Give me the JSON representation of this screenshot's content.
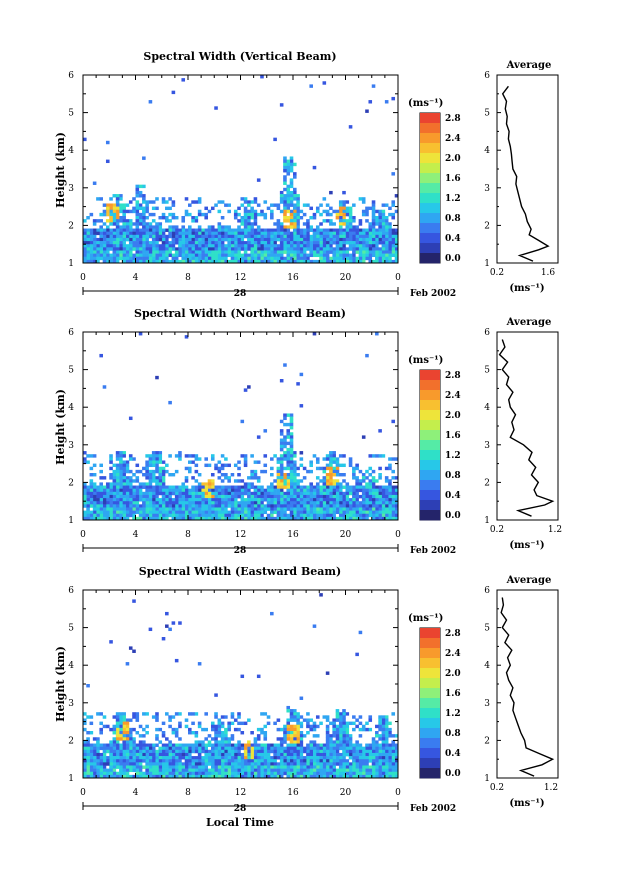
{
  "figure": {
    "xlabel": "Local Time",
    "date_label": "Feb 2002",
    "day_label": "28",
    "colorbar_unit": "(ms⁻¹)",
    "profile_unit": "(ms⁻¹)"
  },
  "chart_data": [
    {
      "type": "heatmap",
      "title": "Spectral Width (Vertical Beam)",
      "ylabel": "Height (km)",
      "xlabel": "",
      "xlim": [
        0,
        24
      ],
      "ylim": [
        1,
        6
      ],
      "x_ticks": [
        "0",
        "4",
        "8",
        "12",
        "16",
        "20",
        "0"
      ],
      "y_ticks": [
        "1",
        "2",
        "3",
        "4",
        "5",
        "6"
      ],
      "colorbar": {
        "unit": "(ms⁻¹)",
        "tick_labels": [
          "0.0",
          "0.4",
          "0.8",
          "1.2",
          "1.6",
          "2.0",
          "2.4",
          "2.8"
        ],
        "range": [
          0,
          3.0
        ]
      },
      "profile": {
        "title": "Average",
        "xlim": [
          0.2,
          1.6
        ],
        "x_ticks": [
          "0.2",
          "1.6"
        ],
        "unit": "(ms⁻¹)",
        "height": [
          1.05,
          1.2,
          1.35,
          1.45,
          1.6,
          1.75,
          1.9,
          2.1,
          2.3,
          2.5,
          2.7,
          2.9,
          3.1,
          3.3,
          3.5,
          3.7,
          3.9,
          4.1,
          4.3,
          4.5,
          4.7,
          4.9,
          5.1,
          5.3,
          5.5,
          5.7
        ],
        "value": [
          1.15,
          0.8,
          1.3,
          1.55,
          1.3,
          1.05,
          1.1,
          1.0,
          0.95,
          0.85,
          0.8,
          0.75,
          0.7,
          0.72,
          0.62,
          0.6,
          0.58,
          0.55,
          0.5,
          0.52,
          0.45,
          0.47,
          0.42,
          0.45,
          0.35,
          0.5
        ]
      }
    },
    {
      "type": "heatmap",
      "title": "Spectral Width (Northward Beam)",
      "ylabel": "Height (km)",
      "xlabel": "",
      "xlim": [
        0,
        24
      ],
      "ylim": [
        1,
        6
      ],
      "x_ticks": [
        "0",
        "4",
        "8",
        "12",
        "16",
        "20",
        "0"
      ],
      "y_ticks": [
        "1",
        "2",
        "3",
        "4",
        "5",
        "6"
      ],
      "colorbar": {
        "unit": "(ms⁻¹)",
        "tick_labels": [
          "0.0",
          "0.4",
          "0.8",
          "1.2",
          "1.6",
          "2.0",
          "2.4",
          "2.8"
        ],
        "range": [
          0,
          3.0
        ]
      },
      "profile": {
        "title": "Average",
        "xlim": [
          0.2,
          1.2
        ],
        "x_ticks": [
          "0.2",
          "1.2"
        ],
        "unit": "(ms⁻¹)",
        "height": [
          1.1,
          1.25,
          1.4,
          1.5,
          1.65,
          1.8,
          2.0,
          2.2,
          2.4,
          2.6,
          2.8,
          3.0,
          3.2,
          3.4,
          3.6,
          3.8,
          4.0,
          4.2,
          4.4,
          4.6,
          4.8,
          5.0,
          5.2,
          5.4,
          5.6,
          5.8
        ],
        "value": [
          0.85,
          0.6,
          1.1,
          1.25,
          0.95,
          0.9,
          0.98,
          0.85,
          0.93,
          0.8,
          0.86,
          0.7,
          0.45,
          0.52,
          0.48,
          0.55,
          0.45,
          0.42,
          0.5,
          0.38,
          0.42,
          0.3,
          0.4,
          0.25,
          0.35,
          0.3
        ]
      }
    },
    {
      "type": "heatmap",
      "title": "Spectral Width (Eastward Beam)",
      "ylabel": "Height (km)",
      "xlabel": "Local Time",
      "xlim": [
        0,
        24
      ],
      "ylim": [
        1,
        6
      ],
      "x_ticks": [
        "0",
        "4",
        "8",
        "12",
        "16",
        "20",
        "0"
      ],
      "y_ticks": [
        "1",
        "2",
        "3",
        "4",
        "5",
        "6"
      ],
      "colorbar": {
        "unit": "(ms⁻¹)",
        "tick_labels": [
          "0.0",
          "0.4",
          "0.8",
          "1.2",
          "1.6",
          "2.0",
          "2.4",
          "2.8"
        ],
        "range": [
          0,
          3.0
        ]
      },
      "profile": {
        "title": "Average",
        "xlim": [
          0.2,
          1.2
        ],
        "x_ticks": [
          "0.2",
          "1.2"
        ],
        "unit": "(ms⁻¹)",
        "height": [
          1.05,
          1.2,
          1.35,
          1.5,
          1.65,
          1.8,
          2.0,
          2.2,
          2.4,
          2.6,
          2.8,
          3.0,
          3.2,
          3.4,
          3.6,
          3.8,
          4.0,
          4.2,
          4.4,
          4.6,
          4.8,
          5.0,
          5.2,
          5.4,
          5.6,
          5.8
        ],
        "value": [
          0.9,
          0.65,
          1.05,
          1.25,
          1.0,
          0.75,
          0.72,
          0.65,
          0.6,
          0.55,
          0.5,
          0.52,
          0.45,
          0.5,
          0.42,
          0.38,
          0.45,
          0.4,
          0.48,
          0.35,
          0.42,
          0.3,
          0.38,
          0.28,
          0.32,
          0.3
        ]
      }
    }
  ]
}
